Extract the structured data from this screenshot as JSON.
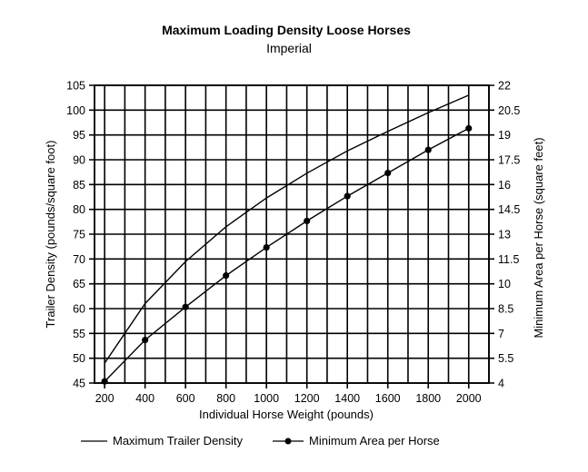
{
  "chart_data": {
    "type": "line",
    "title": "Maximum Loading Density Loose Horses",
    "subtitle": "Imperial",
    "xlabel": "Individual Horse Weight (pounds)",
    "ylabel_left": "Trailer Density (pounds/square foot)",
    "ylabel_right": "Minimum Area per Horse (square feet)",
    "x_ticks": [
      "200",
      "400",
      "600",
      "800",
      "1000",
      "1200",
      "1400",
      "1600",
      "1800",
      "2000"
    ],
    "y_left_ticks": [
      "45",
      "50",
      "55",
      "60",
      "65",
      "70",
      "75",
      "80",
      "85",
      "90",
      "95",
      "100",
      "105"
    ],
    "y_right_ticks": [
      "4",
      "5.5",
      "7",
      "8.5",
      "10",
      "11.5",
      "13",
      "14.5",
      "16",
      "17.5",
      "19",
      "20.5",
      "22"
    ],
    "xlim": [
      150,
      2100
    ],
    "ylim_left": [
      45,
      105
    ],
    "ylim_right": [
      4,
      22
    ],
    "grid": true,
    "legend_position": "bottom",
    "series": [
      {
        "name": "Maximum Trailer Density",
        "axis": "left",
        "marker": false,
        "x": [
          200,
          400,
          600,
          800,
          1000,
          1200,
          1400,
          1600,
          1800,
          2000
        ],
        "y": [
          49,
          61,
          69.5,
          76.5,
          82.3,
          87.3,
          91.8,
          95.7,
          99.5,
          103
        ]
      },
      {
        "name": "Minimum Area per Horse",
        "axis": "right",
        "marker": true,
        "x": [
          200,
          400,
          600,
          800,
          1000,
          1200,
          1400,
          1600,
          1800,
          2000
        ],
        "y": [
          4.1,
          6.6,
          8.6,
          10.5,
          12.2,
          13.8,
          15.3,
          16.7,
          18.1,
          19.4
        ]
      }
    ]
  }
}
